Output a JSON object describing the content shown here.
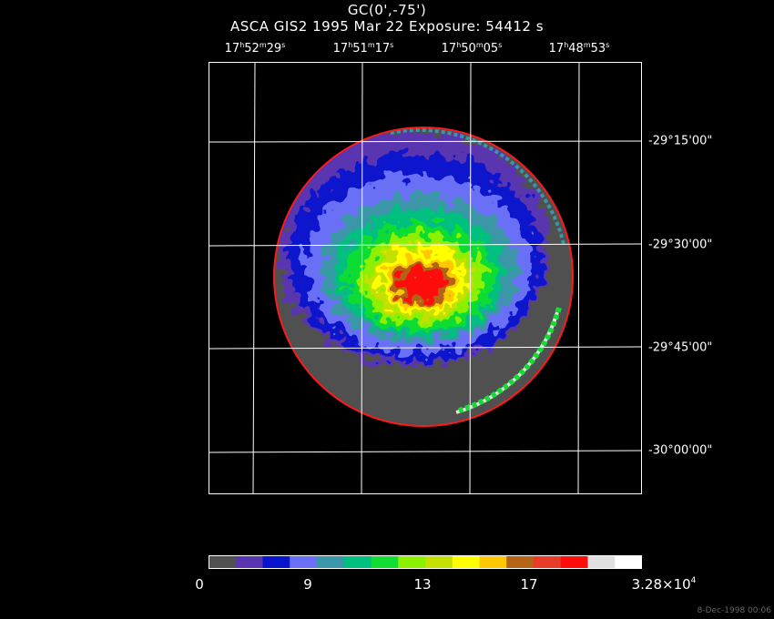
{
  "header": {
    "title": "GC(0',-75')",
    "subtitle": "ASCA GIS2   1995 Mar 22    Exposure: 54412 s"
  },
  "axes": {
    "ra_labels": [
      {
        "h": "17",
        "m": "52",
        "s": "29"
      },
      {
        "h": "17",
        "m": "51",
        "s": "17"
      },
      {
        "h": "17",
        "m": "50",
        "s": "05"
      },
      {
        "h": "17",
        "m": "48",
        "s": "53"
      }
    ],
    "dec_labels": [
      "-29°15'00\"",
      "-29°30'00\"",
      "-29°45'00\"",
      "-30°00'00\""
    ]
  },
  "colorbar": {
    "colors": [
      "#505050",
      "#5a35b0",
      "#0a14cd",
      "#6a70f5",
      "#3a96a8",
      "#00c080",
      "#11dd33",
      "#8cf000",
      "#c4e000",
      "#ffff00",
      "#ffc800",
      "#b46414",
      "#e63c28",
      "#ff0c0c",
      "#e0e0e0",
      "#ffffff"
    ],
    "tick_labels": [
      "0",
      "9",
      "13",
      "17"
    ],
    "max_label_mantissa": "3.28×10",
    "max_label_exponent": "4"
  },
  "footer": {
    "timestamp": "8-Dec-1998 00:06"
  }
}
